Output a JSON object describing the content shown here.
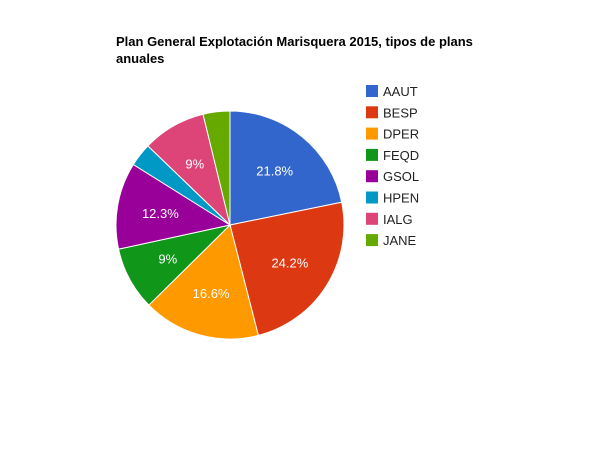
{
  "chart_data": {
    "type": "pie",
    "title_lines": [
      "Plan General Explotación Marisquera 2015, tipos de plans",
      "anuales"
    ],
    "slices": [
      {
        "label": "AAUT",
        "value": 21.8,
        "display": "21.8%",
        "color": "#3366cc"
      },
      {
        "label": "BESP",
        "value": 24.2,
        "display": "24.2%",
        "color": "#dc3912"
      },
      {
        "label": "DPER",
        "value": 16.6,
        "display": "16.6%",
        "color": "#ff9900"
      },
      {
        "label": "FEQD",
        "value": 9.0,
        "display": "9%",
        "color": "#109618"
      },
      {
        "label": "GSOL",
        "value": 12.3,
        "display": "12.3%",
        "color": "#990099"
      },
      {
        "label": "HPEN",
        "value": 3.3,
        "display": "",
        "color": "#0099c6"
      },
      {
        "label": "IALG",
        "value": 9.0,
        "display": "9%",
        "color": "#dd4477"
      },
      {
        "label": "JANE",
        "value": 3.8,
        "display": "",
        "color": "#66aa00"
      }
    ],
    "legend_position": "right"
  }
}
